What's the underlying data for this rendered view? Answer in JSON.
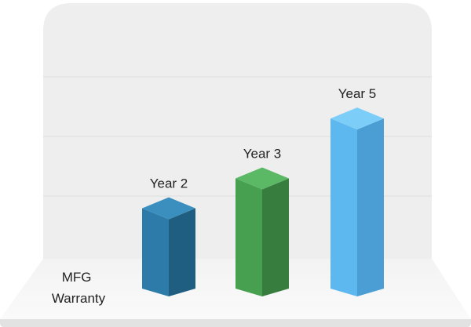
{
  "chart_data": {
    "type": "bar",
    "style": "3d-columns",
    "category_label_lines": [
      "MFG",
      "Warranty"
    ],
    "grid": true,
    "series": [
      {
        "values": [
          2,
          3,
          5
        ],
        "labels": [
          "Year 2",
          "Year 3",
          "Year 5"
        ],
        "colors": [
          {
            "front": "#2d7ba8",
            "side": "#1f5e80",
            "top": "#3a8fbe"
          },
          {
            "front": "#46a050",
            "side": "#377d3e",
            "top": "#5bb865"
          },
          {
            "front": "#5cb8ee",
            "side": "#4a9ed3",
            "top": "#7ccdf8"
          }
        ]
      }
    ],
    "ylim": [
      0,
      6
    ]
  },
  "colors": {
    "backdrop": "#eeeeef",
    "floor": "#f6f6f6",
    "floor_edge": "#e2e2e2",
    "grid": "#dddddd"
  }
}
